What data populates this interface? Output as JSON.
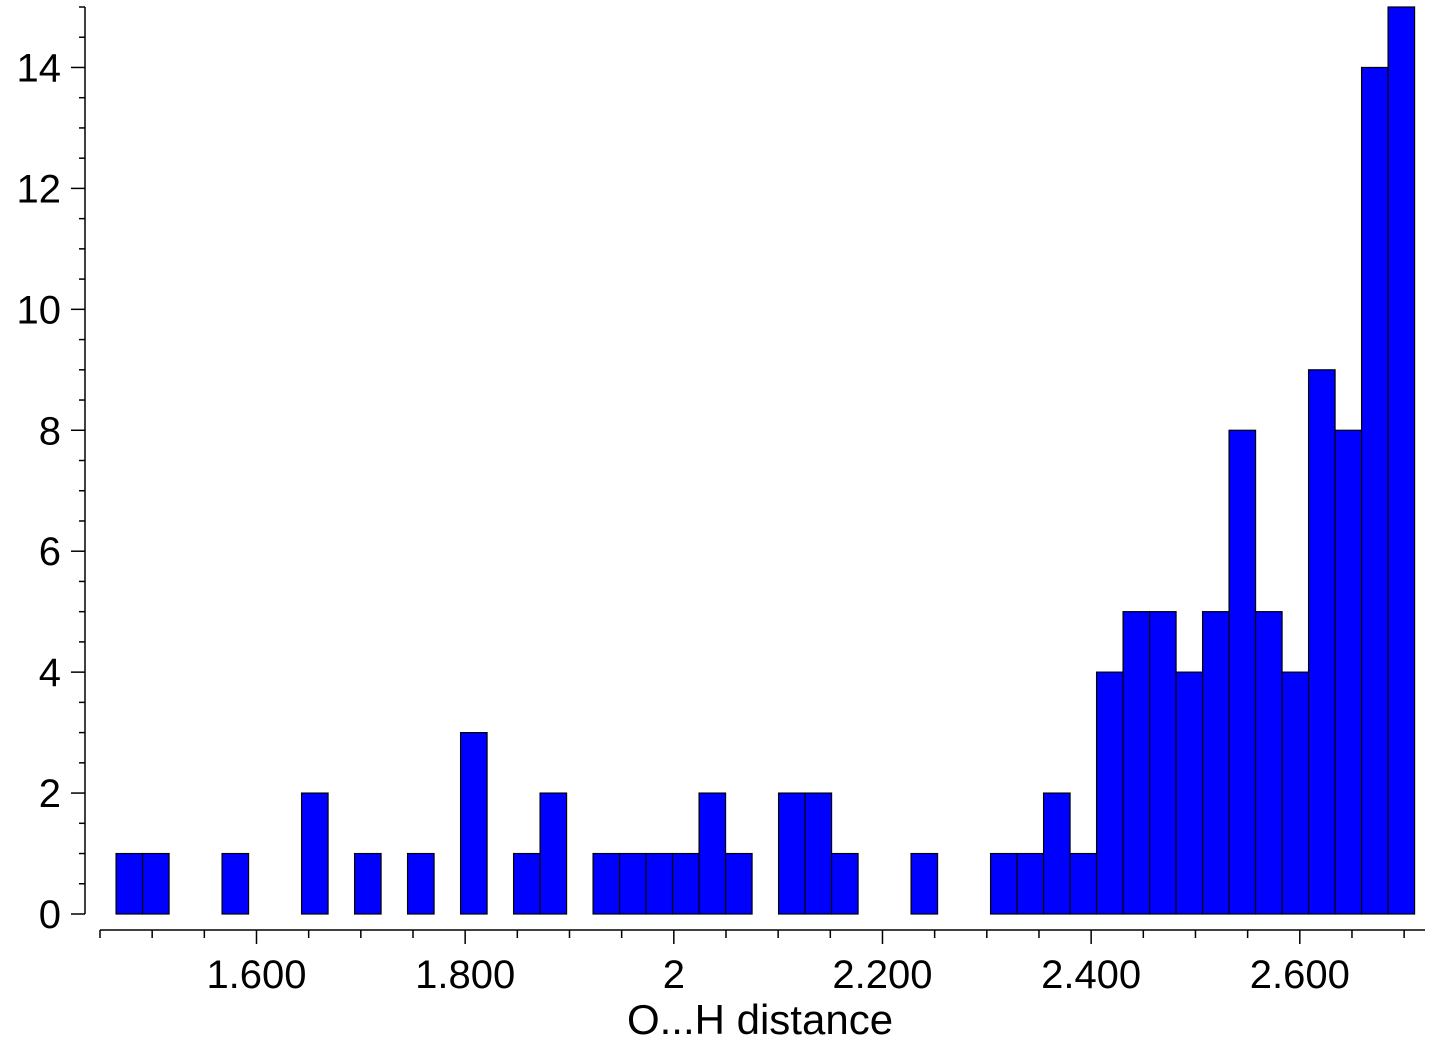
{
  "chart_data": {
    "type": "bar",
    "subtype": "histogram",
    "xlabel": "O...H distance",
    "ylabel": "",
    "xlim": [
      1.45,
      2.72
    ],
    "ylim": [
      0,
      15
    ],
    "bin_width": 0.0254,
    "bin_starts": [
      1.4654,
      1.4908,
      1.5416,
      1.567,
      1.6178,
      1.6432,
      1.6686,
      1.694,
      1.7194,
      1.7448,
      1.7702,
      1.7956,
      1.8464,
      1.8718,
      1.8972,
      1.9226,
      1.948,
      1.9734,
      1.9988,
      2.0242,
      2.0496,
      2.075,
      2.1004,
      2.1258,
      2.1512,
      2.1766,
      2.2274,
      2.2528,
      2.3036,
      2.329,
      2.3544,
      2.3798,
      2.4052,
      2.4306,
      2.456,
      2.4814,
      2.5068,
      2.5322,
      2.5576,
      2.583,
      2.6084,
      2.6338,
      2.6592,
      2.6846
    ],
    "values": [
      1,
      1,
      0,
      1,
      0,
      2,
      0,
      1,
      0,
      1,
      0,
      3,
      1,
      2,
      0,
      1,
      1,
      1,
      1,
      2,
      1,
      0,
      2,
      2,
      1,
      0,
      1,
      0,
      1,
      1,
      2,
      1,
      4,
      5,
      5,
      4,
      5,
      8,
      5,
      4,
      9,
      8,
      14,
      15
    ],
    "bar_color": "#0000ff",
    "x_ticks": [
      {
        "value": 1.6,
        "label": "1.600"
      },
      {
        "value": 1.8,
        "label": "1.800"
      },
      {
        "value": 2.0,
        "label": "2"
      },
      {
        "value": 2.2,
        "label": "2.200"
      },
      {
        "value": 2.4,
        "label": "2.400"
      },
      {
        "value": 2.6,
        "label": "2.600"
      }
    ],
    "x_minor_step": 0.05,
    "y_ticks": [
      0,
      2,
      4,
      6,
      8,
      10,
      12,
      14
    ],
    "y_minor_step": 0.5,
    "grid": false,
    "legend": "none"
  }
}
